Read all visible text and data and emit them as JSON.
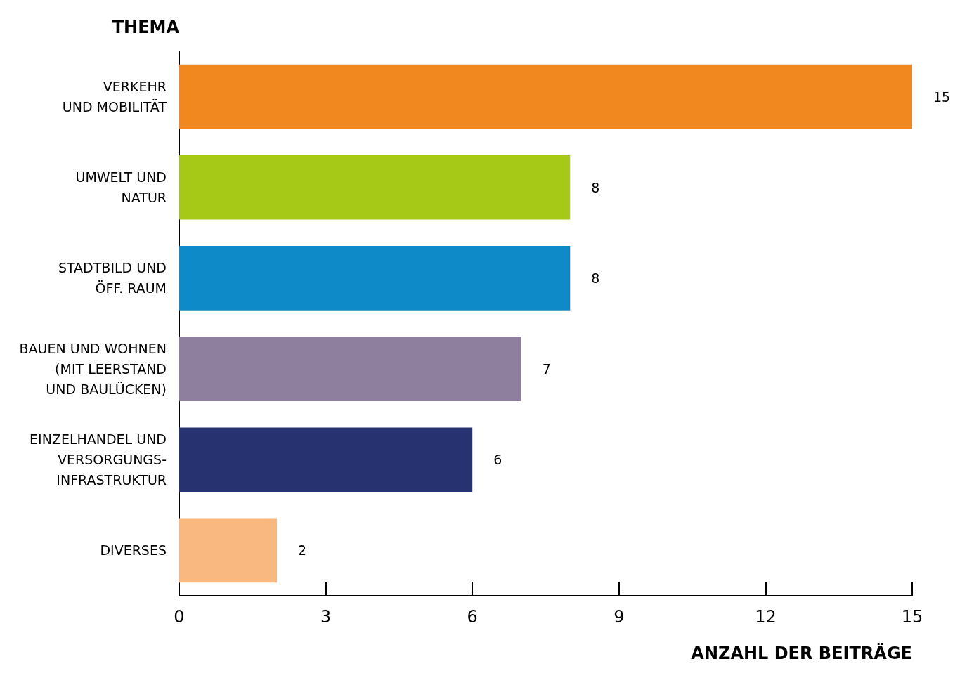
{
  "chart_data": {
    "type": "bar",
    "orientation": "horizontal",
    "ylabel": "THEMA",
    "xlabel": "ANZAHL DER BEITRÄGE",
    "categories": [
      "VERKEHR\nUND MOBILITÄT",
      "UMWELT UND\nNATUR",
      "STADTBILD UND\nÖFF. RAUM",
      "BAUEN UND WOHNEN\n(MIT LEERSTAND\nUND BAULÜCKEN)",
      "EINZELHANDEL UND\nVERSORGUNGS-\nINFRASTRUKTUR",
      "DIVERSES"
    ],
    "values": [
      15,
      8,
      8,
      7,
      6,
      2
    ],
    "colors": [
      "#f0871f",
      "#a6c918",
      "#0f8ac9",
      "#8e7f9f",
      "#263370",
      "#f8b87f"
    ],
    "xlim": [
      0,
      15
    ],
    "xticks": [
      0,
      3,
      6,
      9,
      12,
      15
    ],
    "data_labels": true,
    "grid": false
  }
}
